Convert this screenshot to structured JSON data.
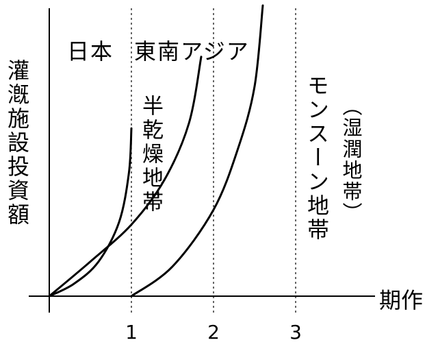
{
  "chart_data": {
    "type": "line",
    "title": "",
    "xlabel": "期作",
    "ylabel": "灌漑施設投資額",
    "x_ticks": [
      1,
      2,
      3
    ],
    "xlim": [
      0,
      4
    ],
    "grid_lines_x": [
      1,
      2,
      3
    ],
    "grid": "dotted-vertical",
    "series": [
      {
        "label_ref": "japan",
        "x": [
          0,
          0.3,
          0.6,
          0.85,
          0.97,
          1.0
        ],
        "y": [
          0,
          0.05,
          0.14,
          0.3,
          0.5,
          0.68
        ]
      },
      {
        "label_ref": "semi_arid",
        "x": [
          0,
          0.5,
          1.0,
          1.4,
          1.7,
          1.85
        ],
        "y": [
          0,
          0.14,
          0.29,
          0.47,
          0.7,
          0.97
        ]
      },
      {
        "label_ref": "monsoon",
        "x": [
          1.0,
          1.5,
          2.0,
          2.3,
          2.5,
          2.6
        ],
        "y": [
          0,
          0.12,
          0.35,
          0.6,
          0.85,
          1.2
        ]
      }
    ],
    "annotations": {
      "japan": "日本",
      "southeast_asia": "東南アジア",
      "semi_arid": "半乾燥地帯",
      "monsoon": "モンスーン地帯",
      "humid": "（湿潤地帯）"
    },
    "ylim": [
      0,
      1.2
    ]
  }
}
